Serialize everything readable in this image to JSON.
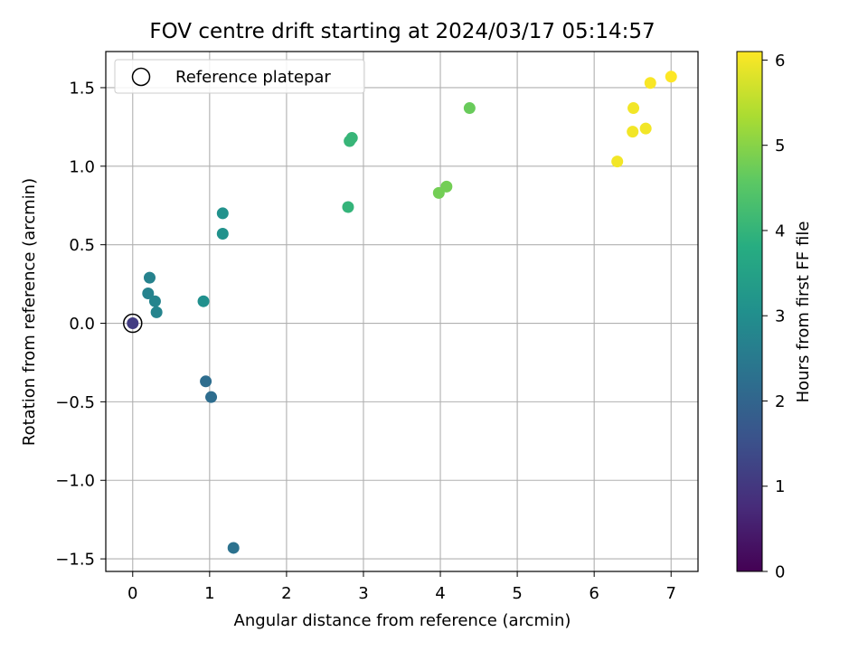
{
  "chart_data": {
    "type": "scatter",
    "title": "FOV centre drift starting at 2024/03/17 05:14:57",
    "xlabel": "Angular distance from reference (arcmin)",
    "ylabel": "Rotation from reference (arcmin)",
    "xlim": [
      -0.35,
      7.35
    ],
    "ylim": [
      -1.58,
      1.73
    ],
    "xticks": [
      0,
      1,
      2,
      3,
      4,
      5,
      6,
      7
    ],
    "xtick_labels": [
      "0",
      "1",
      "2",
      "3",
      "4",
      "5",
      "6",
      "7"
    ],
    "yticks": [
      -1.5,
      -1.0,
      -0.5,
      0.0,
      0.5,
      1.0,
      1.5
    ],
    "ytick_labels": [
      "−1.5",
      "−1.0",
      "−0.5",
      "0.0",
      "0.5",
      "1.0",
      "1.5"
    ],
    "grid": true,
    "legend": {
      "position": "top-left",
      "entries": [
        "Reference platepar"
      ]
    },
    "colorbar": {
      "label": "Hours from first FF file",
      "colormap": "viridis",
      "range": [
        0,
        6.1
      ],
      "ticks": [
        0,
        1,
        2,
        3,
        4,
        5,
        6
      ],
      "tick_labels": [
        "0",
        "1",
        "2",
        "3",
        "4",
        "5",
        "6"
      ]
    },
    "reference_point": {
      "x": 0.0,
      "y": 0.0
    },
    "points": [
      {
        "x": 0.0,
        "y": 0.0,
        "hours": 1.1
      },
      {
        "x": 0.95,
        "y": -0.37,
        "hours": 2.2
      },
      {
        "x": 1.02,
        "y": -0.47,
        "hours": 2.2
      },
      {
        "x": 1.31,
        "y": -1.43,
        "hours": 2.3
      },
      {
        "x": 0.22,
        "y": 0.29,
        "hours": 2.7
      },
      {
        "x": 0.2,
        "y": 0.19,
        "hours": 2.7
      },
      {
        "x": 0.29,
        "y": 0.14,
        "hours": 2.75
      },
      {
        "x": 0.31,
        "y": 0.07,
        "hours": 2.75
      },
      {
        "x": 0.92,
        "y": 0.14,
        "hours": 3.05
      },
      {
        "x": 1.17,
        "y": 0.7,
        "hours": 3.1
      },
      {
        "x": 1.17,
        "y": 0.57,
        "hours": 3.1
      },
      {
        "x": 2.8,
        "y": 0.74,
        "hours": 4.0
      },
      {
        "x": 2.82,
        "y": 1.16,
        "hours": 4.05
      },
      {
        "x": 2.85,
        "y": 1.18,
        "hours": 4.05
      },
      {
        "x": 3.98,
        "y": 0.83,
        "hours": 4.8
      },
      {
        "x": 4.08,
        "y": 0.87,
        "hours": 4.8
      },
      {
        "x": 4.38,
        "y": 1.37,
        "hours": 4.7
      },
      {
        "x": 6.3,
        "y": 1.03,
        "hours": 6.0
      },
      {
        "x": 6.5,
        "y": 1.22,
        "hours": 6.0
      },
      {
        "x": 6.51,
        "y": 1.37,
        "hours": 6.0
      },
      {
        "x": 6.67,
        "y": 1.24,
        "hours": 6.0
      },
      {
        "x": 6.73,
        "y": 1.53,
        "hours": 6.05
      },
      {
        "x": 7.0,
        "y": 1.57,
        "hours": 6.1
      }
    ]
  }
}
